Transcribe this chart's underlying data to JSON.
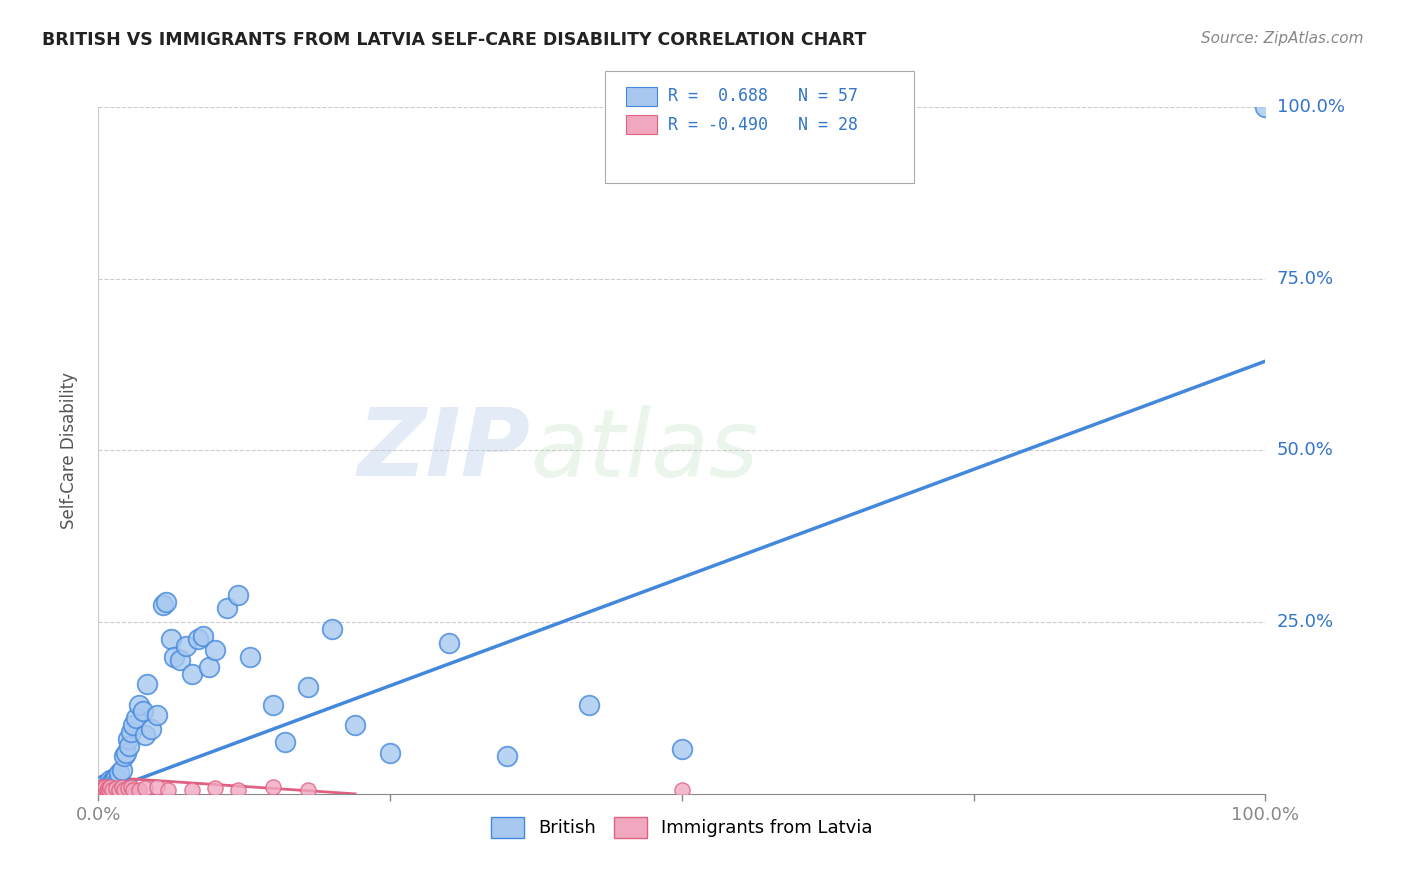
{
  "title": "BRITISH VS IMMIGRANTS FROM LATVIA SELF-CARE DISABILITY CORRELATION CHART",
  "source": "Source: ZipAtlas.com",
  "ylabel": "Self-Care Disability",
  "xlim": [
    0,
    1
  ],
  "ylim": [
    0,
    1
  ],
  "british_color": "#a8c8f0",
  "latvian_color": "#f0a8c0",
  "british_line_color": "#4488dd",
  "latvian_line_color": "#e06080",
  "british_R": 0.688,
  "british_N": 57,
  "latvian_R": -0.49,
  "latvian_N": 28,
  "watermark_zip": "ZIP",
  "watermark_atlas": "atlas",
  "b_line_x0": 0.0,
  "b_line_x1": 1.0,
  "b_line_y0": 0.0,
  "b_line_y1": 0.63,
  "l_line_x0": 0.0,
  "l_line_x1": 0.22,
  "l_line_y0": 0.025,
  "l_line_y1": 0.0,
  "british_x": [
    0.001,
    0.002,
    0.003,
    0.004,
    0.005,
    0.006,
    0.007,
    0.008,
    0.009,
    0.01,
    0.011,
    0.012,
    0.013,
    0.014,
    0.015,
    0.016,
    0.017,
    0.018,
    0.02,
    0.022,
    0.024,
    0.025,
    0.026,
    0.028,
    0.03,
    0.032,
    0.035,
    0.038,
    0.04,
    0.042,
    0.045,
    0.05,
    0.055,
    0.058,
    0.062,
    0.065,
    0.07,
    0.075,
    0.08,
    0.085,
    0.09,
    0.095,
    0.1,
    0.11,
    0.12,
    0.13,
    0.15,
    0.16,
    0.18,
    0.2,
    0.22,
    0.25,
    0.3,
    0.35,
    0.42,
    0.5,
    1.0
  ],
  "british_y": [
    0.01,
    0.005,
    0.008,
    0.012,
    0.006,
    0.015,
    0.01,
    0.008,
    0.012,
    0.02,
    0.015,
    0.018,
    0.022,
    0.01,
    0.025,
    0.015,
    0.02,
    0.03,
    0.035,
    0.055,
    0.06,
    0.08,
    0.07,
    0.09,
    0.1,
    0.11,
    0.13,
    0.12,
    0.085,
    0.16,
    0.095,
    0.115,
    0.275,
    0.28,
    0.225,
    0.2,
    0.195,
    0.215,
    0.175,
    0.225,
    0.23,
    0.185,
    0.21,
    0.27,
    0.29,
    0.2,
    0.13,
    0.075,
    0.155,
    0.24,
    0.1,
    0.06,
    0.22,
    0.055,
    0.13,
    0.065,
    1.0
  ],
  "latvian_x": [
    0.001,
    0.002,
    0.003,
    0.004,
    0.005,
    0.006,
    0.007,
    0.008,
    0.009,
    0.01,
    0.012,
    0.015,
    0.018,
    0.02,
    0.022,
    0.025,
    0.028,
    0.03,
    0.035,
    0.04,
    0.05,
    0.06,
    0.08,
    0.1,
    0.12,
    0.15,
    0.18,
    0.5
  ],
  "latvian_y": [
    0.008,
    0.005,
    0.01,
    0.006,
    0.008,
    0.01,
    0.005,
    0.008,
    0.006,
    0.01,
    0.006,
    0.008,
    0.005,
    0.01,
    0.006,
    0.008,
    0.01,
    0.006,
    0.005,
    0.008,
    0.01,
    0.006,
    0.005,
    0.008,
    0.006,
    0.01,
    0.005,
    0.005
  ]
}
